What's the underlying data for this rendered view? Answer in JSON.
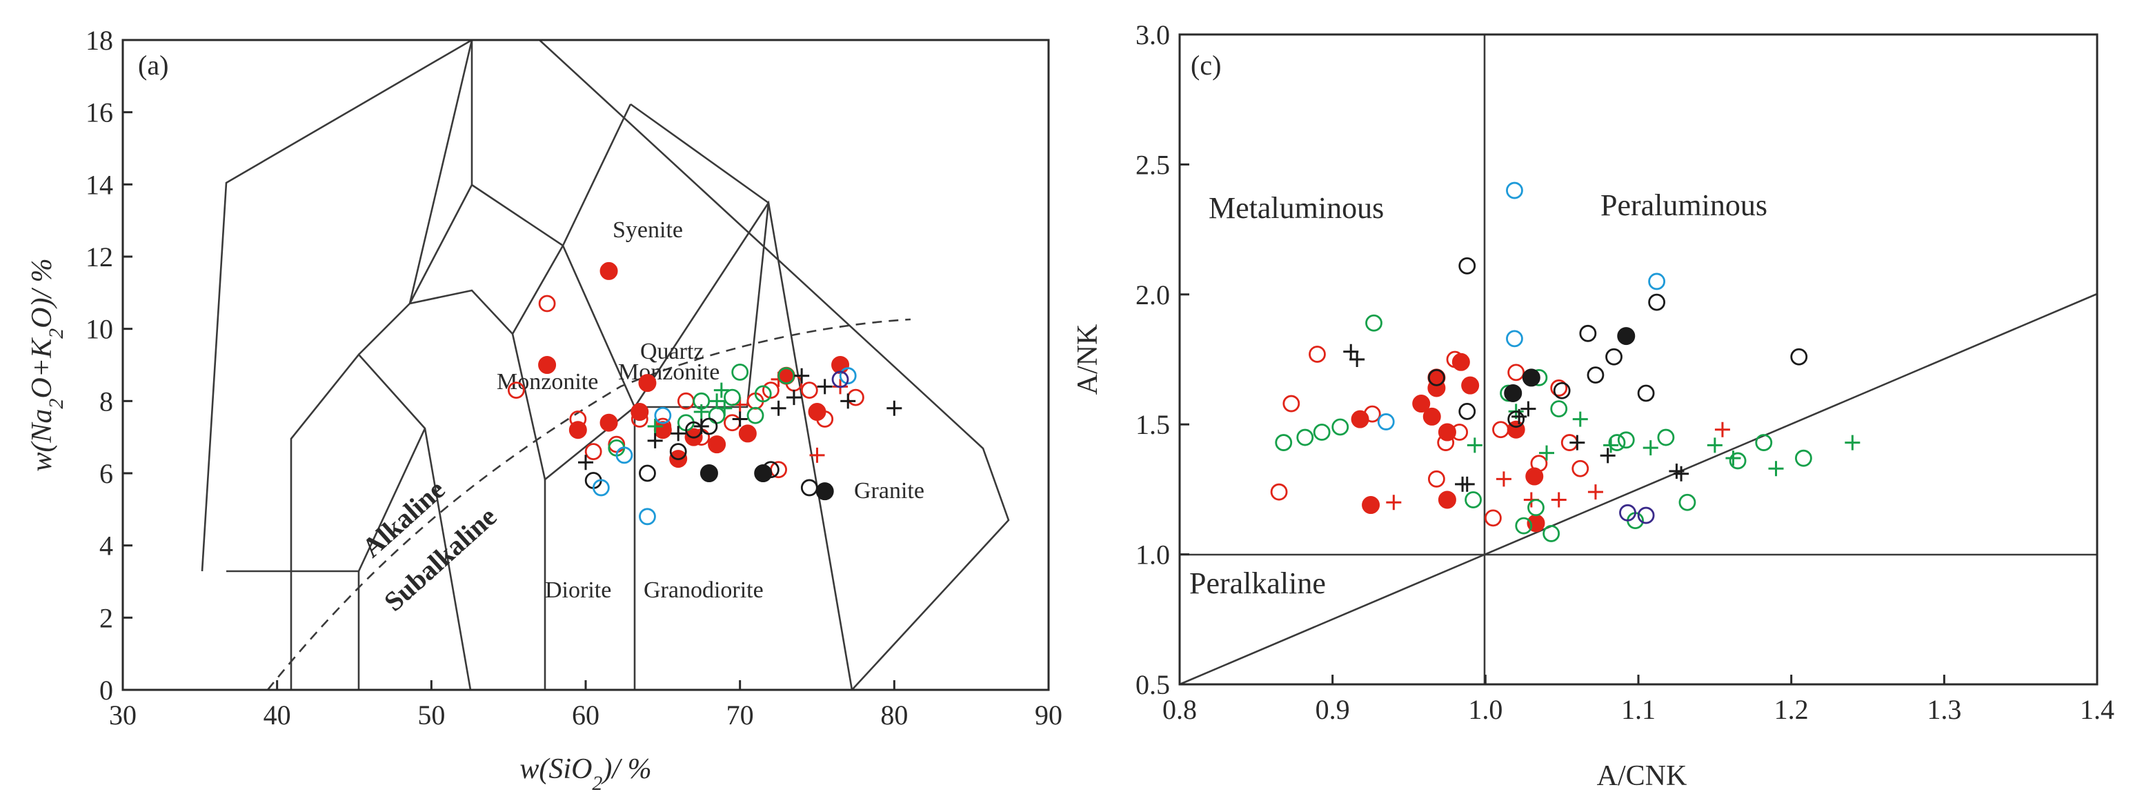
{
  "colors": {
    "red": "#e02418",
    "green": "#16a04a",
    "black": "#1a1a1a",
    "blue": "#1e9ad8",
    "purple": "#3a2a8a"
  },
  "chart_data": [
    {
      "type": "scatter",
      "panel": "(a)",
      "title": "",
      "xlabel": "w(SiO2)/ %",
      "ylabel": "w(Na2O+K2O)/ %",
      "xlim": [
        30,
        90
      ],
      "ylim": [
        0,
        18
      ],
      "x_ticks": [
        "30",
        "40",
        "50",
        "60",
        "70",
        "80",
        "90"
      ],
      "y_ticks": [
        "0",
        "2",
        "4",
        "6",
        "8",
        "10",
        "12",
        "14",
        "16",
        "18"
      ],
      "field_labels": [
        "Syenite",
        "Quartz",
        "Monzonite",
        "Monzonite",
        "Granite",
        "Diorite",
        "Granodiorite",
        "Alkaline",
        "Subalkaline"
      ],
      "series": [
        {
          "name": "red-filled",
          "color": "red",
          "marker": "filled-circle",
          "points": [
            [
              61.5,
              11.6
            ],
            [
              57.5,
              9.0
            ],
            [
              64.0,
              8.5
            ],
            [
              59.5,
              7.2
            ],
            [
              61.5,
              7.4
            ],
            [
              63.5,
              7.7
            ],
            [
              65.0,
              7.2
            ],
            [
              66.0,
              6.4
            ],
            [
              67.0,
              7.0
            ],
            [
              68.5,
              6.8
            ],
            [
              70.5,
              7.1
            ],
            [
              73.0,
              8.7
            ],
            [
              75.0,
              7.7
            ],
            [
              76.5,
              9.0
            ]
          ]
        },
        {
          "name": "red-open",
          "color": "red",
          "marker": "open-circle",
          "points": [
            [
              57.5,
              10.7
            ],
            [
              55.5,
              8.3
            ],
            [
              59.5,
              7.5
            ],
            [
              60.5,
              6.6
            ],
            [
              62.0,
              6.8
            ],
            [
              63.5,
              7.5
            ],
            [
              65.0,
              7.3
            ],
            [
              66.5,
              8.0
            ],
            [
              67.5,
              7.0
            ],
            [
              69.5,
              7.4
            ],
            [
              71.0,
              8.0
            ],
            [
              72.0,
              8.3
            ],
            [
              73.5,
              8.5
            ],
            [
              74.5,
              8.3
            ],
            [
              72.5,
              6.1
            ],
            [
              75.5,
              7.5
            ],
            [
              77.5,
              8.1
            ]
          ]
        },
        {
          "name": "red-cross",
          "color": "red",
          "marker": "plus",
          "points": [
            [
              70.0,
              7.9
            ],
            [
              72.5,
              8.6
            ],
            [
              75.0,
              6.5
            ],
            [
              76.5,
              8.4
            ]
          ]
        },
        {
          "name": "green-open",
          "color": "green",
          "marker": "open-circle",
          "points": [
            [
              62.0,
              6.7
            ],
            [
              66.5,
              7.4
            ],
            [
              67.5,
              8.0
            ],
            [
              68.5,
              7.6
            ],
            [
              69.5,
              8.1
            ],
            [
              70.0,
              8.8
            ],
            [
              71.5,
              8.2
            ],
            [
              73.0,
              8.7
            ],
            [
              71.0,
              7.6
            ]
          ]
        },
        {
          "name": "green-cross",
          "color": "green",
          "marker": "plus",
          "points": [
            [
              64.5,
              7.3
            ],
            [
              67.5,
              7.7
            ],
            [
              68.5,
              8.0
            ],
            [
              69.0,
              7.8
            ],
            [
              68.8,
              8.3
            ]
          ]
        },
        {
          "name": "black-open",
          "color": "black",
          "marker": "open-circle",
          "points": [
            [
              60.5,
              5.8
            ],
            [
              64.0,
              6.0
            ],
            [
              66.0,
              6.6
            ],
            [
              67.0,
              7.2
            ],
            [
              68.0,
              7.3
            ],
            [
              72.0,
              6.1
            ],
            [
              74.5,
              5.6
            ]
          ]
        },
        {
          "name": "black-filled",
          "color": "black",
          "marker": "filled-circle",
          "points": [
            [
              68.0,
              6.0
            ],
            [
              71.5,
              6.0
            ],
            [
              75.5,
              5.5
            ]
          ]
        },
        {
          "name": "black-cross",
          "color": "black",
          "marker": "plus",
          "points": [
            [
              60.0,
              6.3
            ],
            [
              64.5,
              6.9
            ],
            [
              66.0,
              7.1
            ],
            [
              67.5,
              7.3
            ],
            [
              70.0,
              7.5
            ],
            [
              72.5,
              7.8
            ],
            [
              73.5,
              8.1
            ],
            [
              74.0,
              8.7
            ],
            [
              75.5,
              8.4
            ],
            [
              77.0,
              8.0
            ],
            [
              80.0,
              7.8
            ]
          ]
        },
        {
          "name": "blue-open",
          "color": "blue",
          "marker": "open-circle",
          "points": [
            [
              61.0,
              5.6
            ],
            [
              62.5,
              6.5
            ],
            [
              64.0,
              4.8
            ],
            [
              65.0,
              7.6
            ],
            [
              77.0,
              8.7
            ]
          ]
        },
        {
          "name": "purple-open",
          "color": "purple",
          "marker": "open-circle",
          "points": [
            [
              76.5,
              8.6
            ]
          ]
        }
      ]
    },
    {
      "type": "scatter",
      "panel": "(c)",
      "title": "",
      "xlabel": "A/CNK",
      "ylabel": "A/NK",
      "xlim": [
        0.8,
        1.4
      ],
      "ylim": [
        0.5,
        3.0
      ],
      "x_ticks": [
        "0.8",
        "0.9",
        "1.0",
        "1.1",
        "1.2",
        "1.3",
        "1.4"
      ],
      "y_ticks": [
        "0.5",
        "1.0",
        "1.5",
        "2.0",
        "2.5",
        "3.0"
      ],
      "region_labels": [
        "Metaluminous",
        "Peraluminous",
        "Peralkaline"
      ],
      "series": [
        {
          "name": "red-filled",
          "color": "red",
          "marker": "filled-circle",
          "points": [
            [
              0.918,
              1.52
            ],
            [
              0.958,
              1.58
            ],
            [
              0.965,
              1.53
            ],
            [
              0.968,
              1.64
            ],
            [
              0.968,
              1.68
            ],
            [
              0.975,
              1.47
            ],
            [
              0.975,
              1.21
            ],
            [
              0.984,
              1.74
            ],
            [
              0.99,
              1.65
            ],
            [
              1.02,
              1.48
            ],
            [
              1.032,
              1.3
            ],
            [
              1.033,
              1.12
            ],
            [
              0.925,
              1.19
            ]
          ]
        },
        {
          "name": "red-open",
          "color": "red",
          "marker": "open-circle",
          "points": [
            [
              0.865,
              1.24
            ],
            [
              0.873,
              1.58
            ],
            [
              0.89,
              1.77
            ],
            [
              0.926,
              1.54
            ],
            [
              0.968,
              1.29
            ],
            [
              0.974,
              1.43
            ],
            [
              0.983,
              1.47
            ],
            [
              1.005,
              1.14
            ],
            [
              1.01,
              1.48
            ],
            [
              1.02,
              1.7
            ],
            [
              1.035,
              1.35
            ],
            [
              1.048,
              1.64
            ],
            [
              1.062,
              1.33
            ],
            [
              1.055,
              1.43
            ],
            [
              0.98,
              1.75
            ]
          ]
        },
        {
          "name": "red-cross",
          "color": "red",
          "marker": "plus",
          "points": [
            [
              0.94,
              1.2
            ],
            [
              1.012,
              1.29
            ],
            [
              1.03,
              1.21
            ],
            [
              1.048,
              1.21
            ],
            [
              1.072,
              1.24
            ],
            [
              1.155,
              1.48
            ]
          ]
        },
        {
          "name": "green-open",
          "color": "green",
          "marker": "open-circle",
          "points": [
            [
              0.868,
              1.43
            ],
            [
              0.882,
              1.45
            ],
            [
              0.893,
              1.47
            ],
            [
              0.905,
              1.49
            ],
            [
              0.927,
              1.89
            ],
            [
              0.992,
              1.21
            ],
            [
              1.025,
              1.11
            ],
            [
              1.033,
              1.18
            ],
            [
              1.043,
              1.08
            ],
            [
              1.048,
              1.56
            ],
            [
              1.086,
              1.43
            ],
            [
              1.092,
              1.44
            ],
            [
              1.098,
              1.13
            ],
            [
              1.118,
              1.45
            ],
            [
              1.132,
              1.2
            ],
            [
              1.165,
              1.36
            ],
            [
              1.182,
              1.43
            ],
            [
              1.208,
              1.37
            ],
            [
              1.035,
              1.68
            ],
            [
              1.015,
              1.62
            ]
          ]
        },
        {
          "name": "green-cross",
          "color": "green",
          "marker": "plus",
          "points": [
            [
              0.993,
              1.42
            ],
            [
              1.04,
              1.39
            ],
            [
              1.062,
              1.52
            ],
            [
              1.082,
              1.42
            ],
            [
              1.108,
              1.41
            ],
            [
              1.15,
              1.42
            ],
            [
              1.162,
              1.37
            ],
            [
              1.19,
              1.33
            ],
            [
              1.24,
              1.43
            ],
            [
              1.02,
              1.55
            ]
          ]
        },
        {
          "name": "black-open",
          "color": "black",
          "marker": "open-circle",
          "points": [
            [
              0.988,
              2.11
            ],
            [
              0.988,
              1.55
            ],
            [
              0.968,
              1.68
            ],
            [
              1.05,
              1.63
            ],
            [
              1.067,
              1.85
            ],
            [
              1.072,
              1.69
            ],
            [
              1.084,
              1.76
            ],
            [
              1.105,
              1.62
            ],
            [
              1.112,
              1.97
            ],
            [
              1.205,
              1.76
            ],
            [
              1.02,
              1.52
            ]
          ]
        },
        {
          "name": "black-filled",
          "color": "black",
          "marker": "filled-circle",
          "points": [
            [
              1.092,
              1.84
            ],
            [
              1.03,
              1.68
            ],
            [
              1.018,
              1.62
            ]
          ]
        },
        {
          "name": "black-cross",
          "color": "black",
          "marker": "plus",
          "points": [
            [
              0.912,
              1.78
            ],
            [
              0.916,
              1.75
            ],
            [
              0.985,
              1.27
            ],
            [
              0.988,
              1.27
            ],
            [
              1.022,
              1.53
            ],
            [
              1.028,
              1.56
            ],
            [
              1.06,
              1.43
            ],
            [
              1.08,
              1.38
            ],
            [
              1.125,
              1.32
            ],
            [
              1.128,
              1.31
            ]
          ]
        },
        {
          "name": "blue-open",
          "color": "blue",
          "marker": "open-circle",
          "points": [
            [
              1.019,
              2.4
            ],
            [
              1.019,
              1.83
            ],
            [
              1.112,
              2.05
            ],
            [
              0.935,
              1.51
            ]
          ]
        },
        {
          "name": "purple-open",
          "color": "purple",
          "marker": "open-circle",
          "points": [
            [
              1.093,
              1.16
            ],
            [
              1.105,
              1.15
            ]
          ]
        }
      ]
    }
  ]
}
